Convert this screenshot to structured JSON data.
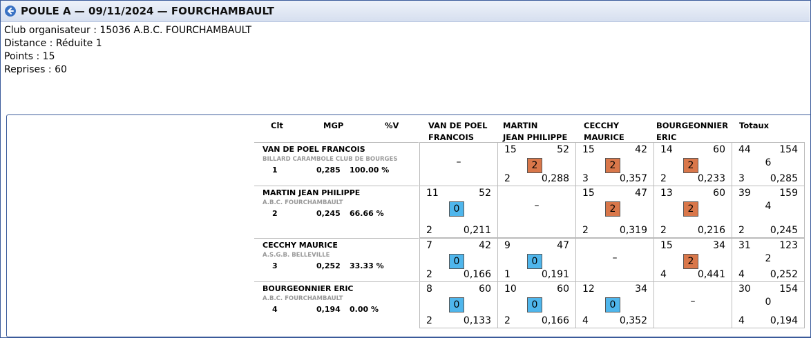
{
  "header": {
    "title": "POULE A — 09/11/2024 — FOURCHAMBAULT"
  },
  "info": {
    "club": "Club organisateur : 15036 A.B.C. FOURCHAMBAULT",
    "distance": "Distance : Réduite 1",
    "points": "Points : 15",
    "reprises": "Reprises : 60"
  },
  "table": {
    "columns": {
      "clt": "Clt",
      "mgp": "MGP",
      "pct": "%V",
      "opponents": [
        [
          "VAN DE POEL",
          "FRANCOIS"
        ],
        [
          "MARTIN",
          "JEAN PHILIPPE"
        ],
        [
          "CECCHY",
          "MAURICE"
        ],
        [
          "BOURGEONNIER",
          "ERIC"
        ]
      ],
      "totals": "Totaux"
    },
    "players": [
      {
        "name": "VAN DE POEL FRANCOIS",
        "club": "BILLARD CARAMBOLE CLUB DE BOURGES",
        "rank": "1",
        "mgp": "0,285",
        "pct": "100.00 %",
        "matches": [
          null,
          {
            "points": "15",
            "caramboles": "52",
            "match_points": "2",
            "series": "2",
            "average": "0,288"
          },
          {
            "points": "15",
            "caramboles": "42",
            "match_points": "2",
            "series": "3",
            "average": "0,357"
          },
          {
            "points": "14",
            "caramboles": "60",
            "match_points": "2",
            "series": "2",
            "average": "0,233"
          }
        ],
        "totals": {
          "points": "44",
          "caramboles": "154",
          "match_points": "6",
          "series": "3",
          "average": "0,285"
        }
      },
      {
        "name": "MARTIN JEAN PHILIPPE",
        "club": "A.B.C. FOURCHAMBAULT",
        "rank": "2",
        "mgp": "0,245",
        "pct": "66.66 %",
        "matches": [
          {
            "points": "11",
            "caramboles": "52",
            "match_points": "0",
            "series": "2",
            "average": "0,211"
          },
          null,
          {
            "points": "15",
            "caramboles": "47",
            "match_points": "2",
            "series": "2",
            "average": "0,319"
          },
          {
            "points": "13",
            "caramboles": "60",
            "match_points": "2",
            "series": "2",
            "average": "0,216"
          }
        ],
        "totals": {
          "points": "39",
          "caramboles": "159",
          "match_points": "4",
          "series": "2",
          "average": "0,245"
        }
      },
      {
        "name": "CECCHY MAURICE",
        "club": "A.S.G.B. BELLEVILLE",
        "rank": "3",
        "mgp": "0,252",
        "pct": "33.33 %",
        "matches": [
          {
            "points": "7",
            "caramboles": "42",
            "match_points": "0",
            "series": "2",
            "average": "0,166"
          },
          {
            "points": "9",
            "caramboles": "47",
            "match_points": "0",
            "series": "1",
            "average": "0,191"
          },
          null,
          {
            "points": "15",
            "caramboles": "34",
            "match_points": "2",
            "series": "4",
            "average": "0,441"
          }
        ],
        "totals": {
          "points": "31",
          "caramboles": "123",
          "match_points": "2",
          "series": "4",
          "average": "0,252"
        }
      },
      {
        "name": "BOURGEONNIER ERIC",
        "club": "A.B.C. FOURCHAMBAULT",
        "rank": "4",
        "mgp": "0,194",
        "pct": "0.00 %",
        "matches": [
          {
            "points": "8",
            "caramboles": "60",
            "match_points": "0",
            "series": "2",
            "average": "0,133"
          },
          {
            "points": "10",
            "caramboles": "60",
            "match_points": "0",
            "series": "2",
            "average": "0,166"
          },
          {
            "points": "12",
            "caramboles": "34",
            "match_points": "0",
            "series": "4",
            "average": "0,352"
          },
          null
        ],
        "totals": {
          "points": "30",
          "caramboles": "154",
          "match_points": "0",
          "series": "4",
          "average": "0,194"
        }
      }
    ],
    "empty_cell": "–"
  },
  "colors": {
    "win_badge": "#d9774a",
    "loss_badge": "#4fb6ec",
    "border": "#3a5a9a"
  }
}
